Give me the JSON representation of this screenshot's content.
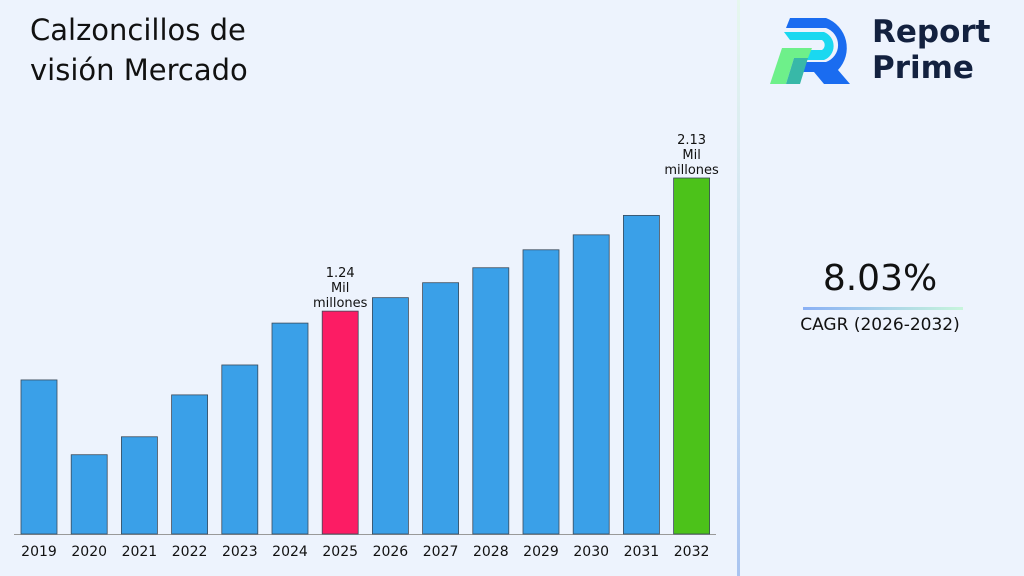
{
  "title": "Calzoncillos de visión Mercado",
  "logo": {
    "line1": "Report",
    "line2": "Prime"
  },
  "cagr": {
    "value": "8.03%",
    "label": "CAGR (2026-2032)"
  },
  "colors": {
    "default": "#3aa0e8",
    "highlight_2025": "#fc1c64",
    "highlight_2032": "#4cc21a"
  },
  "chart_data": {
    "type": "bar",
    "categories": [
      "2019",
      "2020",
      "2021",
      "2022",
      "2023",
      "2024",
      "2025",
      "2026",
      "2027",
      "2028",
      "2029",
      "2030",
      "2031",
      "2032"
    ],
    "values": [
      0.78,
      0.28,
      0.4,
      0.68,
      0.88,
      1.16,
      1.24,
      1.33,
      1.43,
      1.53,
      1.65,
      1.75,
      1.88,
      2.13
    ],
    "data_labels": {
      "2025": [
        "1.24",
        "Mil",
        "millones"
      ],
      "2032": [
        "2.13",
        "Mil",
        "millones"
      ]
    },
    "ylim": [
      -0.25,
      2.4
    ],
    "grid": false,
    "title": "Calzoncillos de visión Mercado"
  }
}
